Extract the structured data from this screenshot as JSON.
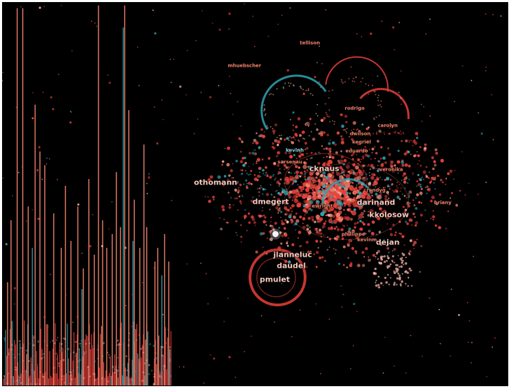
{
  "colors": {
    "background": "#000000",
    "red": "#e8403a",
    "salmon": "#f0826a",
    "teal": "#2ea6b3",
    "pink": "#f2b0a3",
    "label": "#f6c9be",
    "label_teal": "#7fd6df"
  },
  "labels": [
    {
      "text": "tellison",
      "kind": "small"
    },
    {
      "text": "mhuebscher",
      "kind": "small"
    },
    {
      "text": "rodrigo",
      "kind": "small"
    },
    {
      "text": "carolyn",
      "kind": "small"
    },
    {
      "text": "dwilson",
      "kind": "small"
    },
    {
      "text": "kegriel",
      "kind": "small"
    },
    {
      "text": "eduardo",
      "kind": "small"
    },
    {
      "text": "kevinh",
      "kind": "small_teal"
    },
    {
      "text": "dj",
      "kind": "small"
    },
    {
      "text": "sarsenau",
      "kind": "small"
    },
    {
      "text": "veronika",
      "kind": "small"
    },
    {
      "text": "othomann",
      "kind": "large"
    },
    {
      "text": "cknaus",
      "kind": "large"
    },
    {
      "text": "dmegert",
      "kind": "large"
    },
    {
      "text": "darinand",
      "kind": "large"
    },
    {
      "text": "kkolosow",
      "kind": "large"
    },
    {
      "text": "dejan",
      "kind": "large"
    },
    {
      "text": "briany",
      "kind": "small"
    },
    {
      "text": "jlanneluc",
      "kind": "large"
    },
    {
      "text": "daudel",
      "kind": "large"
    },
    {
      "text": "pmulet",
      "kind": "large"
    },
    {
      "text": "ewright",
      "kind": "small"
    },
    {
      "text": "randyg",
      "kind": "small"
    },
    {
      "text": "phillippe",
      "kind": "small"
    },
    {
      "text": "kevinm",
      "kind": "small"
    }
  ]
}
